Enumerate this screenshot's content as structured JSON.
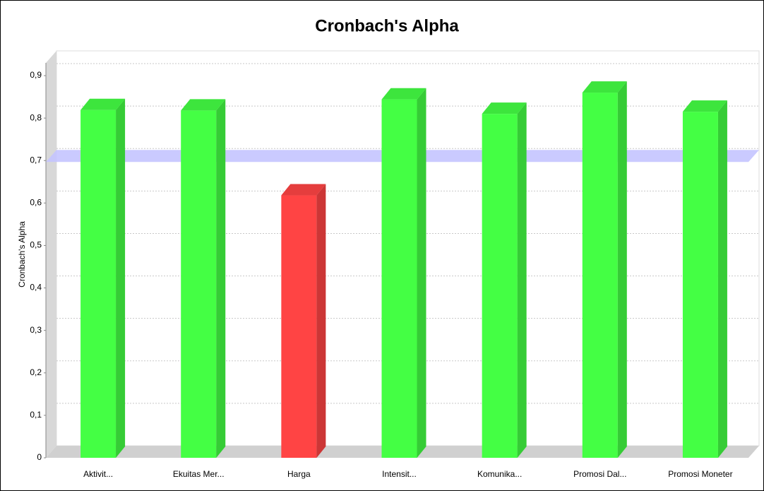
{
  "chart_data": {
    "type": "bar",
    "title": "Cronbach's Alpha",
    "y_label": "Cronbach's Alpha",
    "categories": [
      "Aktivit...",
      "Ekuitas Mer...",
      "Harga",
      "Intensit...",
      "Komunika...",
      "Promosi Dal...",
      "Promosi Moneter"
    ],
    "values": [
      0.819,
      0.818,
      0.618,
      0.844,
      0.81,
      0.86,
      0.815
    ],
    "colors": [
      "#44ff44",
      "#44ff44",
      "#ff4444",
      "#44ff44",
      "#44ff44",
      "#44ff44",
      "#44ff44"
    ],
    "reference_line": 0.7,
    "reference_color": "#c4c4ff",
    "ylim": [
      0,
      0.93
    ],
    "yticks": [
      0,
      {
        "value": 0.1,
        "label": "0,1"
      },
      {
        "value": 0.2,
        "label": "0,2"
      },
      {
        "value": 0.3,
        "label": "0,3"
      },
      {
        "value": 0.4,
        "label": "0,4"
      },
      {
        "value": 0.5,
        "label": "0,5"
      },
      {
        "value": 0.6,
        "label": "0,6"
      },
      {
        "value": 0.7,
        "label": "0,7"
      },
      {
        "value": 0.8,
        "label": "0,8"
      },
      {
        "value": 0.9,
        "label": "0,9"
      }
    ],
    "grid": true
  }
}
